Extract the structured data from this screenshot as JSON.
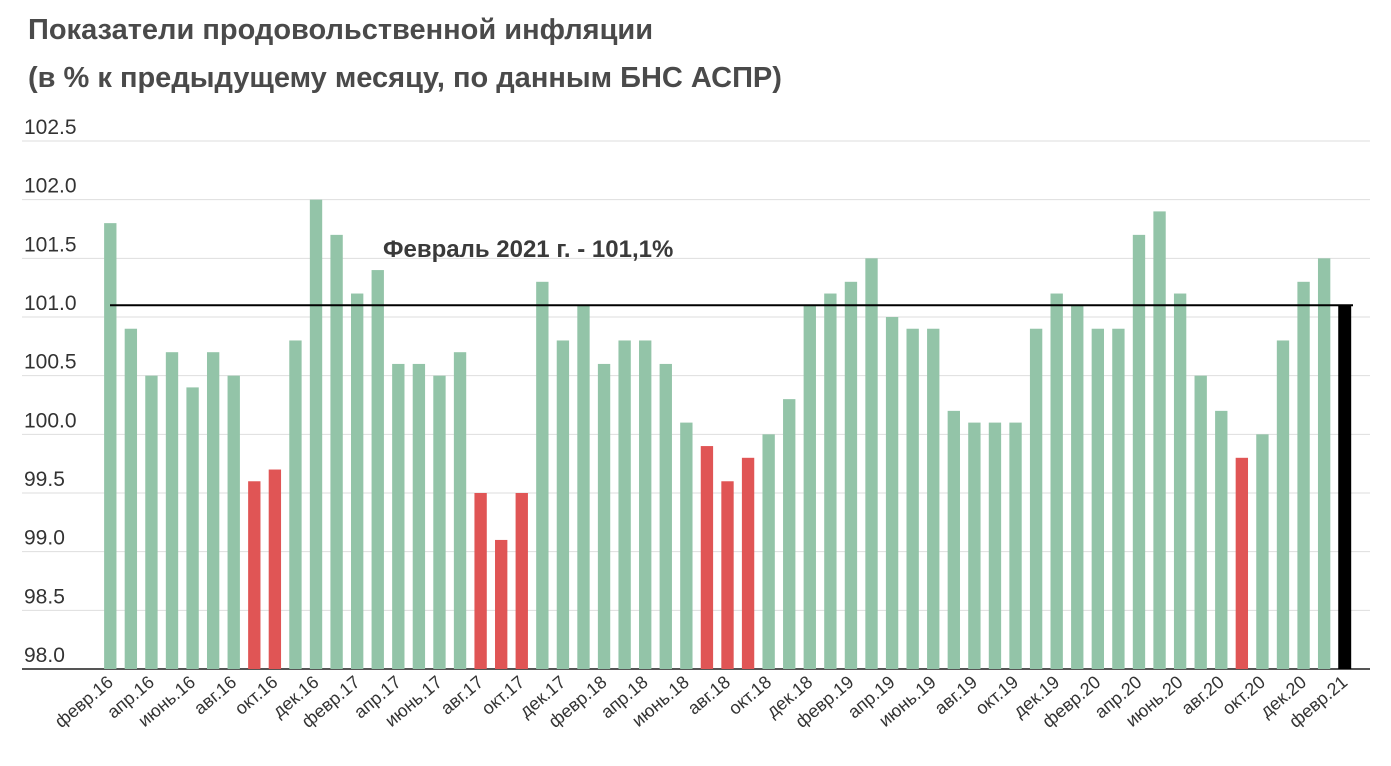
{
  "chart_data": {
    "type": "bar",
    "title": "Показатели продовольственной инфляции",
    "subtitle": "(в % к предыдущему месяцу, по данным БНС АСПР)",
    "xlabel": "",
    "ylabel": "",
    "ylim": [
      98.0,
      102.5
    ],
    "yticks": [
      "102.5",
      "102.0",
      "101.5",
      "101.0",
      "100.5",
      "100.0",
      "99.5",
      "99.0",
      "98.5",
      "98.0"
    ],
    "grid": true,
    "legend": "none",
    "colors": {
      "above": "#93c4a8",
      "below": "#e05555",
      "latest": "#000000",
      "reference_line": "#000000"
    },
    "reference_value": 101.1,
    "annotation": "Февраль 2021 г. - 101,1%",
    "categories": [
      "февр.16",
      "мар.16",
      "апр.16",
      "мая.16",
      "июнь.16",
      "июль.16",
      "авг.16",
      "сент.16",
      "окт.16",
      "нояб.16",
      "дек.16",
      "янв.17",
      "февр.17",
      "мар.17",
      "апр.17",
      "мая.17",
      "июнь.17",
      "июль.17",
      "авг.17",
      "сент.17",
      "окт.17",
      "нояб.17",
      "дек.17",
      "янв.18",
      "февр.18",
      "мар.18",
      "апр.18",
      "мая.18",
      "июнь.18",
      "июль.18",
      "авг.18",
      "сент.18",
      "окт.18",
      "нояб.18",
      "дек.18",
      "янв.19",
      "февр.19",
      "мар.19",
      "апр.19",
      "мая.19",
      "июнь.19",
      "июль.19",
      "авг.19",
      "сент.19",
      "окт.19",
      "нояб.19",
      "дек.19",
      "янв.20",
      "февр.20",
      "мар.20",
      "апр.20",
      "мая.20",
      "июнь.20",
      "июль.20",
      "авг.20",
      "сент.20",
      "окт.20",
      "нояб.20",
      "дек.20",
      "янв.21",
      "февр.21"
    ],
    "shown_labels": [
      "февр.16",
      "апр.16",
      "июнь.16",
      "авг.16",
      "окт.16",
      "дек.16",
      "февр.17",
      "апр.17",
      "июнь.17",
      "авг.17",
      "окт.17",
      "дек.17",
      "февр.18",
      "апр.18",
      "июнь.18",
      "авг.18",
      "окт.18",
      "дек.18",
      "февр.19",
      "апр.19",
      "июнь.19",
      "авг.19",
      "окт.19",
      "дек.19",
      "февр.20",
      "апр.20",
      "июнь.20",
      "авг.20",
      "окт.20",
      "дек.20",
      "февр.21"
    ],
    "values": [
      101.8,
      100.9,
      100.5,
      100.7,
      100.4,
      100.7,
      100.5,
      99.6,
      99.7,
      100.8,
      102.0,
      101.7,
      101.2,
      101.4,
      100.6,
      100.6,
      100.5,
      100.7,
      99.5,
      99.1,
      99.5,
      101.3,
      100.8,
      101.1,
      100.6,
      100.8,
      100.8,
      100.6,
      100.1,
      99.9,
      99.6,
      99.8,
      100.0,
      100.3,
      101.1,
      101.2,
      101.3,
      101.5,
      101.0,
      100.9,
      100.9,
      100.2,
      100.1,
      100.1,
      100.1,
      100.9,
      101.2,
      101.1,
      100.9,
      100.9,
      101.7,
      101.9,
      101.2,
      100.5,
      100.2,
      99.8,
      100.0,
      100.8,
      101.3,
      101.5,
      101.1
    ]
  }
}
